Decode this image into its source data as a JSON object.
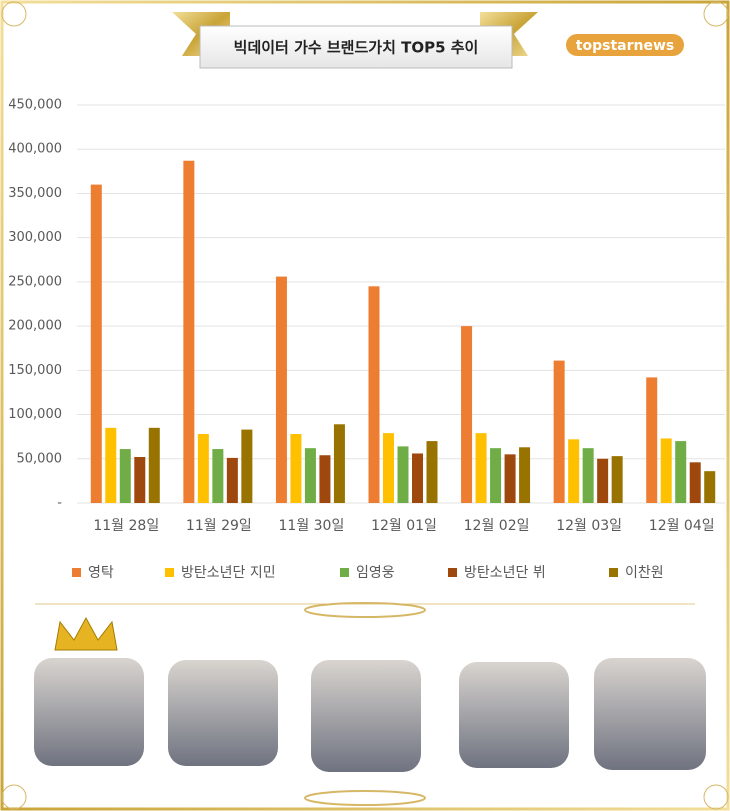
{
  "logo": "topstarnews",
  "chart_data": {
    "type": "bar",
    "title": "빅데이터 가수 브랜드가치 TOP5 추이",
    "categories": [
      "11월 28일",
      "11월 29일",
      "11월 30일",
      "12월 01일",
      "12월 02일",
      "12월 03일",
      "12월 04일"
    ],
    "series": [
      {
        "name": "영탁",
        "color": "#ed7d31",
        "values": [
          360000,
          387000,
          256000,
          245000,
          200000,
          161000,
          142000
        ]
      },
      {
        "name": "방탄소년단 지민",
        "color": "#ffc000",
        "values": [
          85000,
          78000,
          78000,
          79000,
          79000,
          72000,
          73000
        ]
      },
      {
        "name": "임영웅",
        "color": "#70ad47",
        "values": [
          61000,
          61000,
          62000,
          64000,
          62000,
          62000,
          70000
        ]
      },
      {
        "name": "방탄소년단 뷔",
        "color": "#9e480e",
        "values": [
          52000,
          51000,
          54000,
          56000,
          55000,
          50000,
          46000
        ]
      },
      {
        "name": "이찬원",
        "color": "#997300",
        "values": [
          85000,
          83000,
          89000,
          70000,
          63000,
          53000,
          36000
        ]
      }
    ],
    "ylim": [
      0,
      450000
    ],
    "yticks": [
      {
        "value": 0,
        "label": "-"
      },
      {
        "value": 50000,
        "label": "50,000"
      },
      {
        "value": 100000,
        "label": "100,000"
      },
      {
        "value": 150000,
        "label": "150,000"
      },
      {
        "value": 200000,
        "label": "200,000"
      },
      {
        "value": 250000,
        "label": "250,000"
      },
      {
        "value": 300000,
        "label": "300,000"
      },
      {
        "value": 350000,
        "label": "350,000"
      },
      {
        "value": 400000,
        "label": "400,000"
      },
      {
        "value": 450000,
        "label": "450,000"
      }
    ],
    "grid": true
  }
}
